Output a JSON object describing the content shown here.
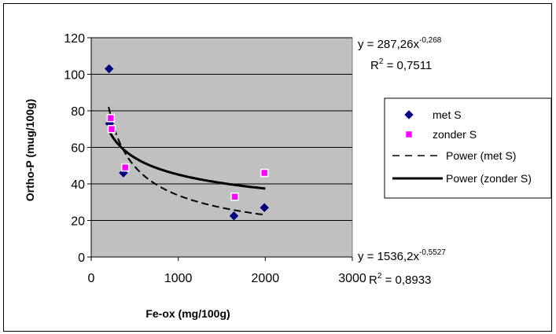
{
  "chart_data": {
    "type": "scatter",
    "title": "",
    "xlabel": "Fe-ox (mg/100g)",
    "ylabel": "Ortho-P (mug/100g)",
    "xlim": [
      0,
      3000
    ],
    "ylim": [
      0,
      120
    ],
    "x_ticks": [
      "0",
      "1000",
      "2000",
      "3000"
    ],
    "y_ticks": [
      "0",
      "20",
      "40",
      "60",
      "80",
      "100",
      "120"
    ],
    "grid": "horizontal major gridlines",
    "plot_background": "#c0c0c0",
    "legend_position": "right",
    "series": [
      {
        "name": "met S",
        "marker": "diamond",
        "color": "#000080",
        "points": [
          [
            205,
            103
          ],
          [
            210,
            73
          ],
          [
            370,
            46
          ],
          [
            1640,
            22.5
          ],
          [
            1990,
            27
          ]
        ]
      },
      {
        "name": "zonder S",
        "marker": "square",
        "color": "#ff00ff",
        "points": [
          [
            225,
            76
          ],
          [
            235,
            70
          ],
          [
            390,
            49
          ],
          [
            1650,
            33
          ],
          [
            1990,
            46
          ]
        ]
      },
      {
        "name": "Power (met S)",
        "line": "dashed",
        "color": "#000000",
        "fit": {
          "a": 1536.2,
          "b": -0.5527,
          "x_range": [
            200,
            2000
          ]
        }
      },
      {
        "name": "Power (zonder S)",
        "line": "solid",
        "color": "#000000",
        "fit": {
          "a": 287.26,
          "b": -0.268,
          "x_range": [
            200,
            2000
          ]
        }
      }
    ],
    "annotations": [
      {
        "text_base": "y = 287,26x",
        "text_exp": "-0,268",
        "r2_base": "R",
        "r2_exp": "2",
        "r2_value": " = 0,7511"
      },
      {
        "text_base": "y = 1536,2x",
        "text_exp": "-0,5527",
        "r2_base": "R",
        "r2_exp": "2",
        "r2_value": " = 0,8933"
      }
    ]
  }
}
